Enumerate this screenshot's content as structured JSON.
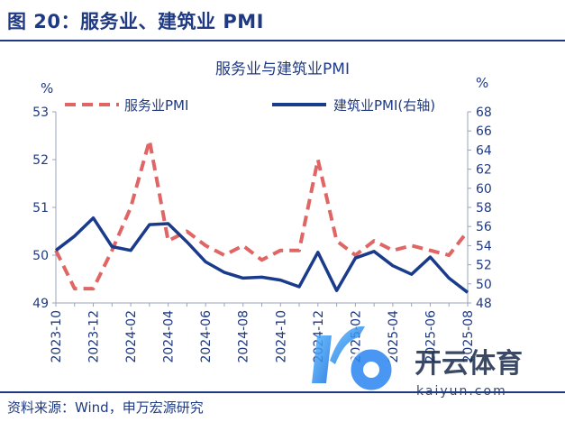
{
  "figure_title": "图 20：服务业、建筑业 PMI",
  "source": "资料来源：Wind，申万宏源研究",
  "watermark": {
    "brand": "开云体育",
    "site": "kaiyun.com"
  },
  "colors": {
    "primary": "#1f3a82",
    "services": "#e06666",
    "construction": "#1a3a8c"
  },
  "chart_data": {
    "type": "line",
    "title": "服务业与建筑业PMI",
    "x": [
      "2023-10",
      "2023-11",
      "2023-12",
      "2024-01",
      "2024-02",
      "2024-03",
      "2024-04",
      "2024-05",
      "2024-06",
      "2024-07",
      "2024-08",
      "2024-09",
      "2024-10",
      "2024-11",
      "2024-12",
      "2025-01",
      "2025-02",
      "2025-03",
      "2025-04",
      "2025-05",
      "2025-06",
      "2025-07",
      "2025-08"
    ],
    "xtick_labels": [
      "2023-10",
      "2023-12",
      "2024-02",
      "2024-04",
      "2024-06",
      "2024-08",
      "2024-10",
      "2024-12",
      "2025-02",
      "2025-04",
      "2025-06",
      "2025-08"
    ],
    "left_axis": {
      "unit": "%",
      "ylim": [
        49,
        53
      ],
      "ticks": [
        49,
        50,
        51,
        52,
        53
      ]
    },
    "right_axis": {
      "unit": "%",
      "ylim": [
        48,
        68
      ],
      "ticks": [
        48,
        50,
        52,
        54,
        56,
        58,
        60,
        62,
        64,
        66,
        68
      ]
    },
    "series": [
      {
        "name": "服务业PMI",
        "axis": "left",
        "style": "dashed",
        "values": [
          50.1,
          49.3,
          49.3,
          50.1,
          51.0,
          52.4,
          50.3,
          50.5,
          50.2,
          50.0,
          50.2,
          49.9,
          50.1,
          50.1,
          52.0,
          50.3,
          50.0,
          50.3,
          50.1,
          50.2,
          50.1,
          50.0,
          50.5
        ]
      },
      {
        "name": "建筑业PMI(右轴)",
        "axis": "right",
        "style": "solid",
        "values": [
          53.5,
          55.0,
          56.9,
          53.9,
          53.5,
          56.2,
          56.3,
          54.4,
          52.3,
          51.2,
          50.6,
          50.7,
          50.4,
          49.7,
          53.3,
          49.3,
          52.7,
          53.4,
          51.9,
          51.0,
          52.8,
          50.6,
          49.1
        ]
      }
    ]
  }
}
